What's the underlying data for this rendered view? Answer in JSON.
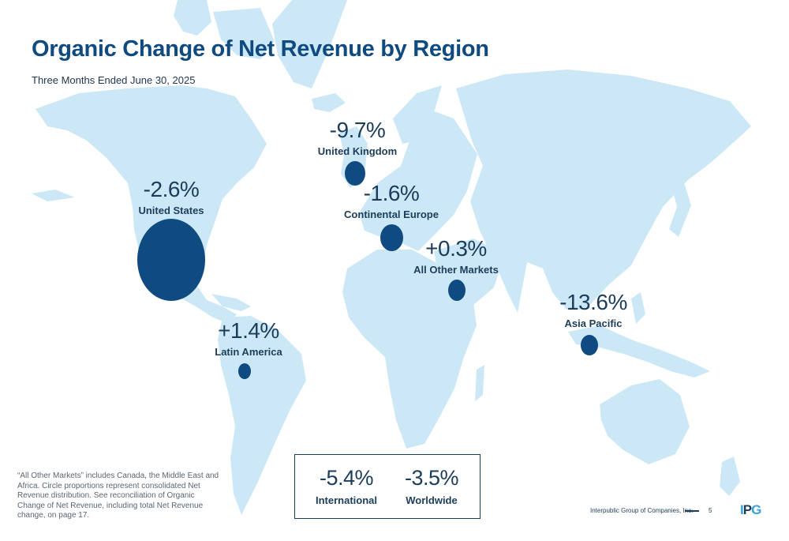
{
  "title": "Organic Change of Net Revenue by Region",
  "subtitle": "Three Months Ended June 30, 2025",
  "regions": [
    {
      "id": "us",
      "value": "-2.6%",
      "name": "United States"
    },
    {
      "id": "uk",
      "value": "-9.7%",
      "name": "United Kingdom"
    },
    {
      "id": "ce",
      "value": "-1.6%",
      "name": "Continental Europe"
    },
    {
      "id": "aom",
      "value": "+0.3%",
      "name": "All Other Markets"
    },
    {
      "id": "la",
      "value": "+1.4%",
      "name": "Latin America"
    },
    {
      "id": "ap",
      "value": "-13.6%",
      "name": "Asia Pacific"
    }
  ],
  "footnote": "“All Other Markets” includes Canada, the Middle East and Africa. Circle proportions represent consolidated Net Revenue distribution. See reconciliation of Organic Change of Net Revenue, including total Net Revenue change, on page 17.",
  "summary": {
    "international": {
      "value": "-5.4%",
      "label": "International"
    },
    "worldwide": {
      "value": "-3.5%",
      "label": "Worldwide"
    }
  },
  "footer": {
    "company": "Interpublic Group of Companies, Inc.",
    "page": "5",
    "logo_left": "I",
    "logo_mid": "P",
    "logo_right": "G"
  },
  "colors": {
    "map": "#cce8f7",
    "circle": "#0f4a80",
    "text": "#1c3d5a"
  }
}
